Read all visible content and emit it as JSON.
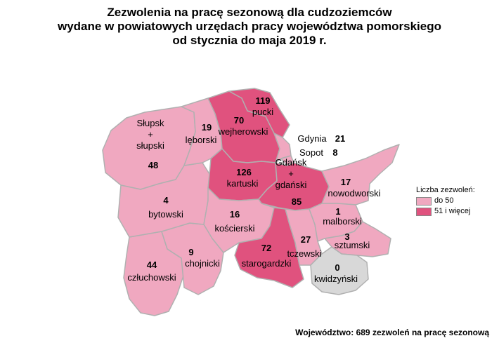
{
  "title": {
    "line1": "Zezwolenia na pracę sezonową dla cudzoziemców",
    "line2": "wydane w powiatowych urzędach pracy województwa pomorskiego",
    "line3": "od stycznia do maja 2019 r."
  },
  "colors": {
    "low": "#f0a8c0",
    "high": "#e0527e",
    "zero": "#d8d8d8",
    "border": "#b0b0b0"
  },
  "legend": {
    "title": "Liczba zezwoleń:",
    "items": [
      {
        "label": "do 50",
        "color": "#f0a8c0"
      },
      {
        "label": "51 i więcej",
        "color": "#e0527e"
      }
    ]
  },
  "regions": [
    {
      "id": "slupsk",
      "name_lines": [
        "Słupsk",
        "+",
        "słupski"
      ],
      "value": "48",
      "category": "low"
    },
    {
      "id": "leborski",
      "name_lines": [
        "lęborski"
      ],
      "value": "19",
      "category": "low"
    },
    {
      "id": "wejherowski",
      "name_lines": [
        "wejherowski"
      ],
      "value": "70",
      "category": "high"
    },
    {
      "id": "pucki",
      "name_lines": [
        "pucki"
      ],
      "value": "119",
      "category": "high"
    },
    {
      "id": "gdynia",
      "name_lines": [
        "Gdynia"
      ],
      "value": "21",
      "category": "low"
    },
    {
      "id": "sopot",
      "name_lines": [
        "Sopot"
      ],
      "value": "8",
      "category": "low"
    },
    {
      "id": "gdansk",
      "name_lines": [
        "Gdańsk",
        "+",
        "gdański"
      ],
      "value": "85",
      "category": "high"
    },
    {
      "id": "kartuski",
      "name_lines": [
        "kartuski"
      ],
      "value": "126",
      "category": "high"
    },
    {
      "id": "nowodworski",
      "name_lines": [
        "nowodworski"
      ],
      "value": "17",
      "category": "low"
    },
    {
      "id": "bytowski",
      "name_lines": [
        "bytowski"
      ],
      "value": "4",
      "category": "low"
    },
    {
      "id": "koscierski",
      "name_lines": [
        "kościerski"
      ],
      "value": "16",
      "category": "low"
    },
    {
      "id": "malborski",
      "name_lines": [
        "malborski"
      ],
      "value": "1",
      "category": "low"
    },
    {
      "id": "sztumski",
      "name_lines": [
        "sztumski"
      ],
      "value": "3",
      "category": "low"
    },
    {
      "id": "tczewski",
      "name_lines": [
        "tczewski"
      ],
      "value": "27",
      "category": "low"
    },
    {
      "id": "starogardzki",
      "name_lines": [
        "starogardzki"
      ],
      "value": "72",
      "category": "high"
    },
    {
      "id": "chojnicki",
      "name_lines": [
        "chojnicki"
      ],
      "value": "9",
      "category": "low"
    },
    {
      "id": "czluchowski",
      "name_lines": [
        "człuchowski"
      ],
      "value": "44",
      "category": "low"
    },
    {
      "id": "kwidzynski",
      "name_lines": [
        "kwidzyński"
      ],
      "value": "0",
      "category": "zero"
    }
  ],
  "footer": "Województwo: 689 zezwoleń na pracę sezonową"
}
